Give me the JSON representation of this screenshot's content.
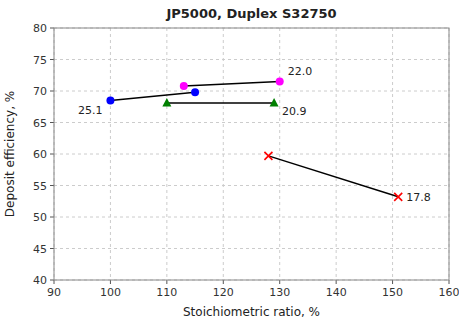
{
  "chart_data": {
    "type": "line",
    "title": "JP5000, Duplex S32750",
    "xlabel": "Stoichiometric ratio, %",
    "ylabel": "Deposit efficiency, %",
    "xlim": [
      90,
      160
    ],
    "ylim": [
      40,
      80
    ],
    "xticks": [
      90,
      100,
      110,
      120,
      130,
      140,
      150,
      160
    ],
    "yticks": [
      40,
      45,
      50,
      55,
      60,
      65,
      70,
      75,
      80
    ],
    "grid": true,
    "color": "#000000",
    "series": [
      {
        "color": "#0000FF",
        "marker": "circle",
        "x": [
          100,
          115
        ],
        "values": [
          68.5,
          69.8
        ]
      },
      {
        "color": "#008000",
        "marker": "triangle",
        "x": [
          110,
          129
        ],
        "values": [
          68.1,
          68.1
        ]
      },
      {
        "color": "#FF00FF",
        "marker": "circle",
        "x": [
          113,
          130
        ],
        "values": [
          70.8,
          71.5
        ]
      },
      {
        "color": "#FF0000",
        "marker": "x",
        "x": [
          128,
          151
        ],
        "values": [
          59.7,
          53.2
        ]
      }
    ],
    "annotations": [
      {
        "text": "25.1",
        "x": 100,
        "y": 68.5
      },
      {
        "text": "20.9",
        "x": 129,
        "y": 68.1
      },
      {
        "text": "22.0",
        "x": 130,
        "y": 71.5
      },
      {
        "text": "17.8",
        "x": 151,
        "y": 53.2
      }
    ]
  }
}
